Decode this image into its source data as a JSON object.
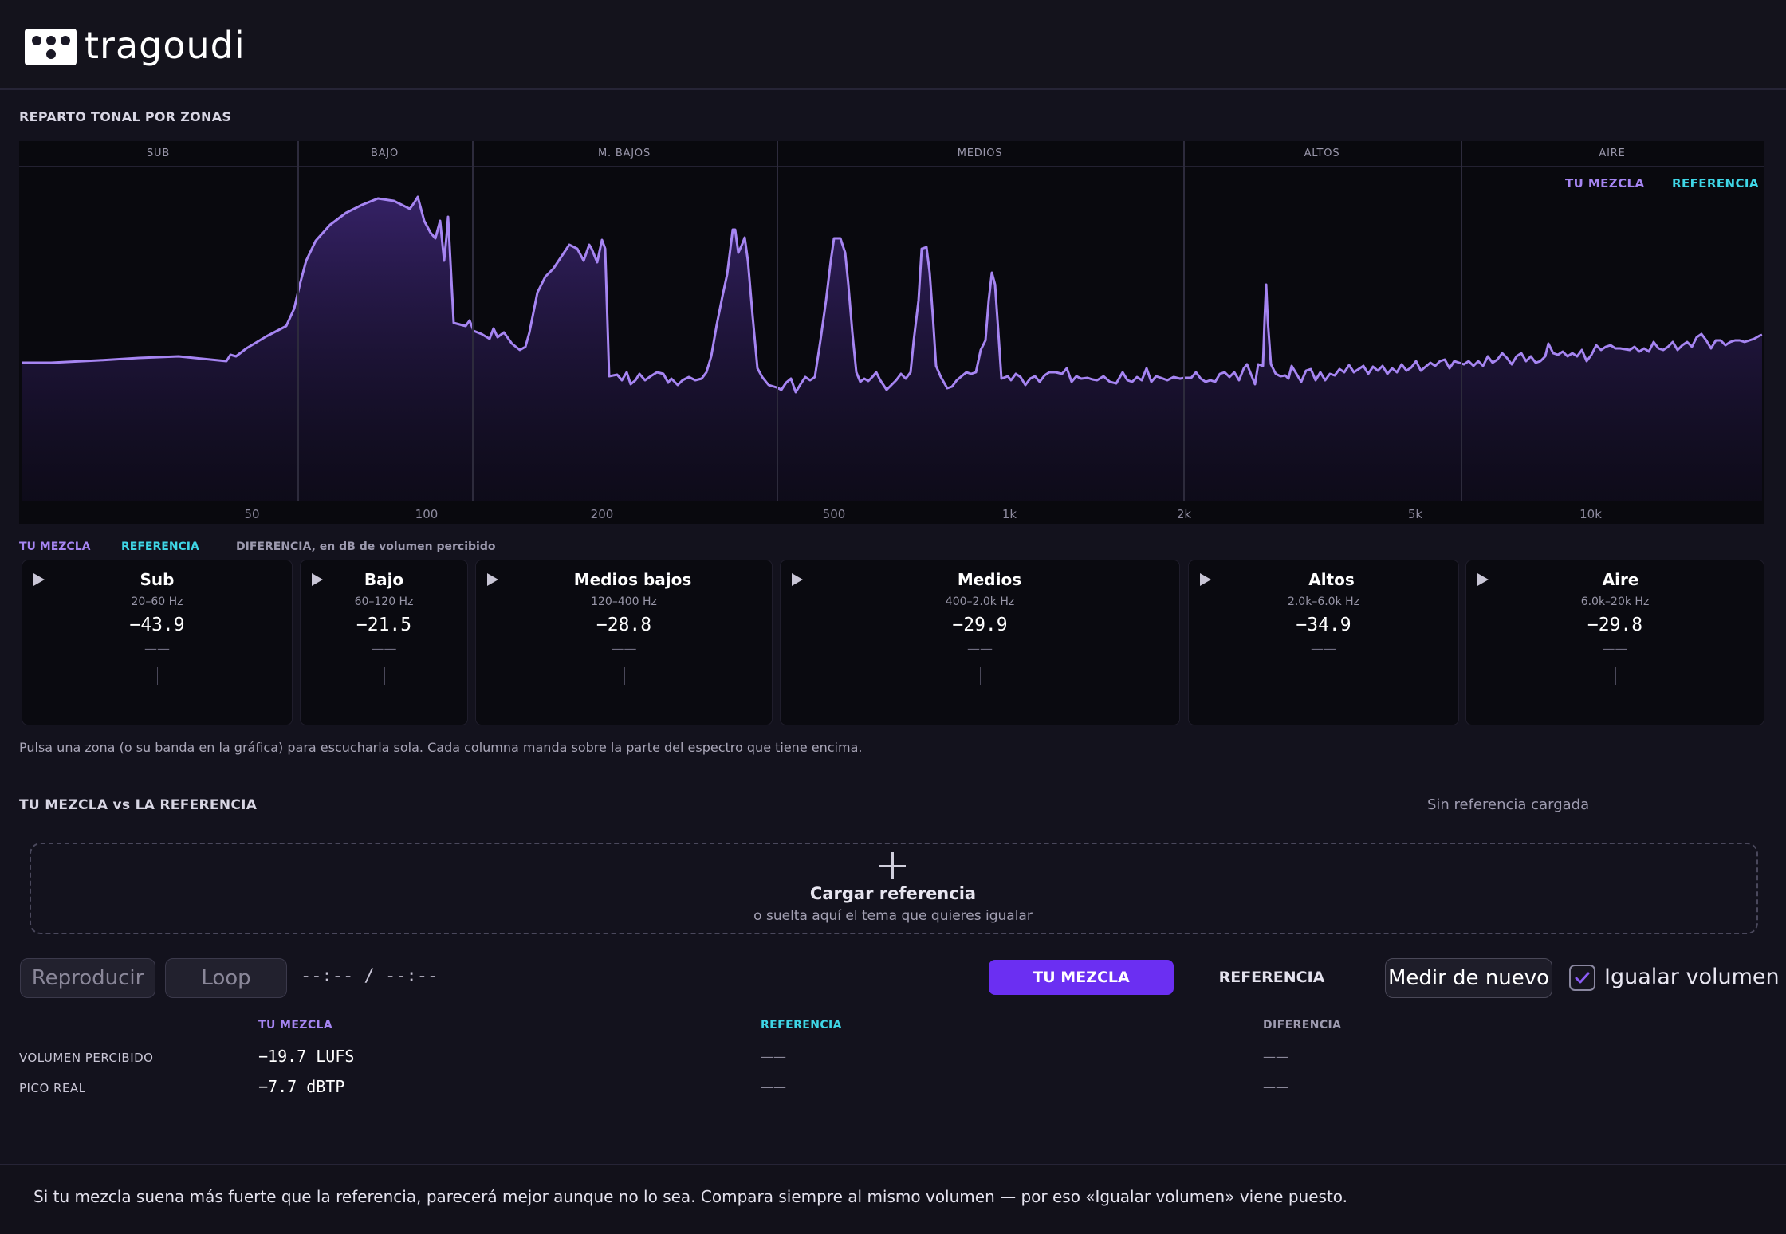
{
  "app": {
    "name": "tragoudi"
  },
  "tonal": {
    "title": "REPARTO TONAL POR ZONAS",
    "zones": [
      "SUB",
      "BAJO",
      "M. BAJOS",
      "MEDIOS",
      "ALTOS",
      "AIRE"
    ],
    "legend_mix": "TU MEZCLA",
    "legend_ref": "REFERENCIA",
    "freq_labels": [
      "50",
      "100",
      "200",
      "500",
      "1k",
      "2k",
      "5k",
      "10k"
    ],
    "colors": {
      "mix": "#a685f2",
      "ref": "#3fd6e6"
    }
  },
  "bands_legend": {
    "mix": "TU MEZCLA",
    "ref": "REFERENCIA",
    "diff": "DIFERENCIA, en dB de volumen percibido"
  },
  "bands": [
    {
      "name": "Sub",
      "range": "20–60 Hz",
      "value": "−43.9",
      "diff": "——"
    },
    {
      "name": "Bajo",
      "range": "60–120 Hz",
      "value": "−21.5",
      "diff": "——"
    },
    {
      "name": "Medios bajos",
      "range": "120–400 Hz",
      "value": "−28.8",
      "diff": "——"
    },
    {
      "name": "Medios",
      "range": "400–2.0k Hz",
      "value": "−29.9",
      "diff": "——"
    },
    {
      "name": "Altos",
      "range": "2.0k–6.0k Hz",
      "value": "−34.9",
      "diff": "——"
    },
    {
      "name": "Aire",
      "range": "6.0k–20k Hz",
      "value": "−29.8",
      "diff": "——"
    }
  ],
  "hint": "Pulsa una zona (o su banda en la gráfica) para escucharla sola. Cada columna manda sobre la parte del espectro que tiene encima.",
  "compare": {
    "title": "TU MEZCLA vs LA REFERENCIA",
    "status": "Sin referencia cargada",
    "drop_title": "Cargar referencia",
    "drop_sub": "o suelta aquí el tema que quieres igualar",
    "play_label": "Reproducir",
    "loop_label": "Loop",
    "time": "--:-- / --:--",
    "tab_mix": "TU MEZCLA",
    "tab_ref": "REFERENCIA",
    "measure_label": "Medir de nuevo",
    "match_label": "Igualar volumen",
    "match_checked": true
  },
  "metrics": {
    "headers": [
      "TU MEZCLA",
      "REFERENCIA",
      "DIFERENCIA"
    ],
    "rows": [
      {
        "label": "VOLUMEN PERCIBIDO",
        "mix": "−19.7 LUFS",
        "ref": "——",
        "diff": "——"
      },
      {
        "label": "PICO REAL",
        "mix": "−7.7 dBTP",
        "ref": "——",
        "diff": "——"
      }
    ]
  },
  "footer": "Si tu mezcla suena más fuerte que la referencia, parecerá mejor aunque no lo sea. Compara siempre al mismo volumen — por eso «Igualar volumen» viene puesto."
}
